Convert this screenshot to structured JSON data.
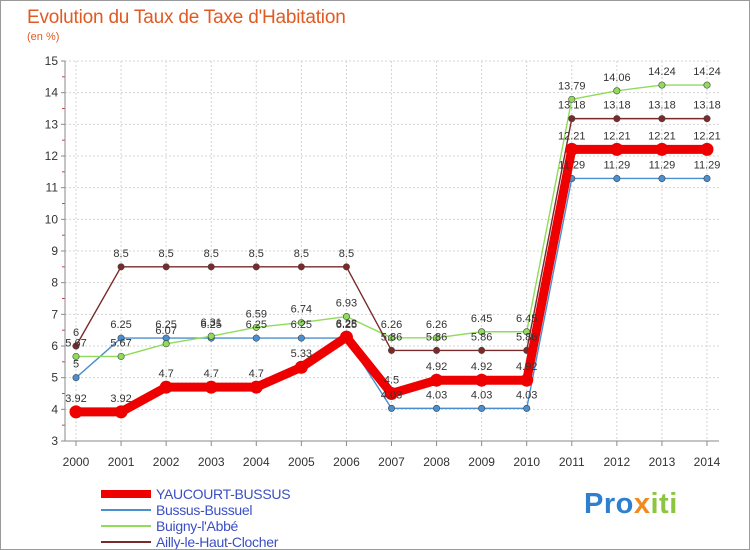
{
  "title": "Evolution du Taux de Taxe d'Habitation",
  "subtitle": "(en %)",
  "logo": {
    "part1": "Pro",
    "part2": "x",
    "part3": "iti"
  },
  "chart_data": {
    "type": "line",
    "x": [
      "2000",
      "2001",
      "2002",
      "2003",
      "2004",
      "2005",
      "2006",
      "2007",
      "2008",
      "2009",
      "2010",
      "2011",
      "2012",
      "2013",
      "2014"
    ],
    "ylim": [
      3,
      15
    ],
    "yticks": [
      3,
      4,
      5,
      6,
      7,
      8,
      9,
      10,
      11,
      12,
      13,
      14,
      15
    ],
    "grid": true,
    "legend_position": "bottom-left",
    "series": [
      {
        "name": "YAUCOURT-BUSSUS",
        "color": "#ee0000",
        "thick": true,
        "values": [
          3.92,
          3.92,
          4.7,
          4.7,
          4.7,
          5.33,
          6.28,
          4.5,
          4.92,
          4.92,
          4.92,
          12.21,
          12.21,
          12.21,
          12.21
        ],
        "labels": [
          "3.92",
          "3.92",
          "4.7",
          "4.7",
          "4.7",
          "5.33",
          "6.28",
          "4.5",
          "4.92",
          "4.92",
          "4.92",
          "12.21",
          "12.21",
          "12.21",
          "12.21"
        ]
      },
      {
        "name": "Bussus-Bussuel",
        "color": "#4a8fd0",
        "thick": false,
        "values": [
          5,
          6.25,
          6.25,
          6.25,
          6.25,
          6.25,
          6.25,
          4.03,
          4.03,
          4.03,
          4.03,
          11.29,
          11.29,
          11.29,
          11.29
        ],
        "labels": [
          "5",
          "6.25",
          "6.25",
          "6.25",
          "6.25",
          "6.25",
          "6.25",
          "4.03",
          "4.03",
          "4.03",
          "4.03",
          "11.29",
          "11.29",
          "11.29",
          "11.29"
        ]
      },
      {
        "name": "Buigny-l'Abbé",
        "color": "#8fdc5a",
        "thick": false,
        "values": [
          5.67,
          5.67,
          6.07,
          6.31,
          6.59,
          6.74,
          6.93,
          6.26,
          6.26,
          6.45,
          6.45,
          13.79,
          14.06,
          14.24,
          14.24
        ],
        "labels": [
          "5.67",
          "5.67",
          "6.07",
          "6.31",
          "6.59",
          "6.74",
          "6.93",
          "6.26",
          "6.26",
          "6.45",
          "6.45",
          "13.79",
          "14.06",
          "14.24",
          "14.24"
        ]
      },
      {
        "name": "Ailly-le-Haut-Clocher",
        "color": "#7a2a2a",
        "thick": false,
        "values": [
          6,
          8.5,
          8.5,
          8.5,
          8.5,
          8.5,
          8.5,
          5.86,
          5.86,
          5.86,
          5.86,
          13.18,
          13.18,
          13.18,
          13.18
        ],
        "labels": [
          "6",
          "8.5",
          "8.5",
          "8.5",
          "8.5",
          "8.5",
          "8.5",
          "5.86",
          "5.86",
          "5.86",
          "5.86",
          "13.18",
          "13.18",
          "13.18",
          "13.18"
        ]
      }
    ]
  }
}
